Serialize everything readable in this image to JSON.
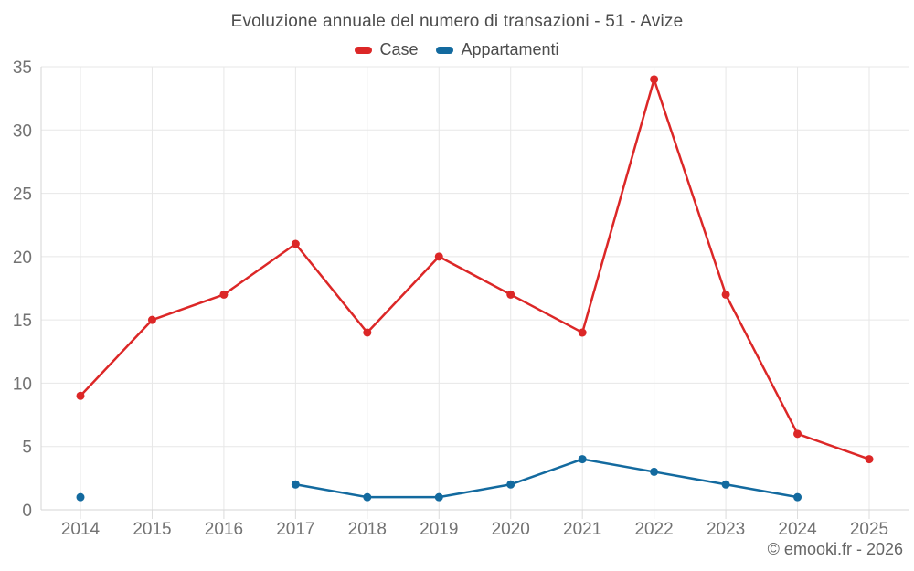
{
  "header": {
    "title": "Evoluzione annuale del numero di transazioni - 51 - Avize"
  },
  "footer": {
    "copyright": "© emooki.fr - 2026"
  },
  "chart_data": {
    "type": "line",
    "title": "Evoluzione annuale del numero di transazioni - 51 - Avize",
    "categories": [
      "2014",
      "2015",
      "2016",
      "2017",
      "2018",
      "2019",
      "2020",
      "2021",
      "2022",
      "2023",
      "2024",
      "2025"
    ],
    "series": [
      {
        "name": "Case",
        "color": "#dc2727",
        "values": [
          9,
          15,
          17,
          21,
          14,
          20,
          17,
          14,
          34,
          17,
          6,
          4
        ]
      },
      {
        "name": "Appartamenti",
        "color": "#136a9f",
        "values": [
          1,
          null,
          null,
          2,
          1,
          1,
          2,
          4,
          3,
          2,
          1,
          null
        ]
      }
    ],
    "xlabel": "",
    "ylabel": "",
    "ylim": [
      0,
      35
    ],
    "yticks": [
      0,
      5,
      10,
      15,
      20,
      25,
      30,
      35
    ],
    "grid": true,
    "legend_position": "top",
    "marker": "circle"
  }
}
